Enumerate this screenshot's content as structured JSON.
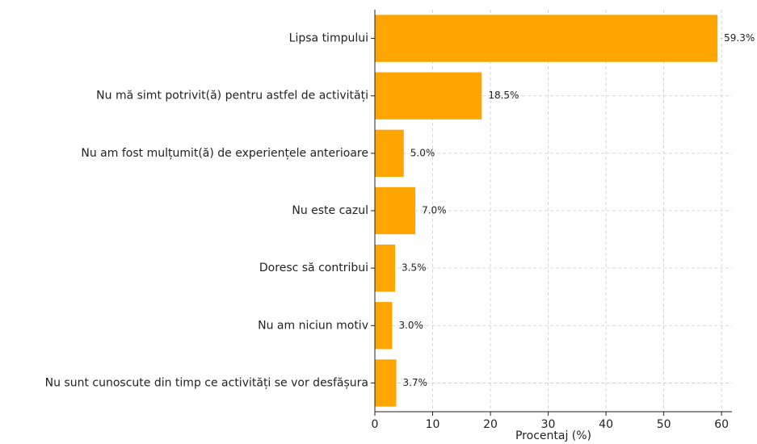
{
  "chart_data": {
    "type": "barh",
    "categories": [
      "Lipsa timpului",
      "Nu mă simt potrivit(ă) pentru astfel de activități",
      "Nu am fost mulțumit(ă) de experiențele anterioare",
      "Nu este cazul",
      "Doresc să contribui",
      "Nu am niciun motiv",
      "Nu sunt cunoscute din timp ce activități se vor desfășura"
    ],
    "values": [
      59.3,
      18.5,
      5.0,
      7.0,
      3.5,
      3.0,
      3.7
    ],
    "value_labels": [
      "59.3%",
      "18.5%",
      "5.0%",
      "7.0%",
      "3.5%",
      "3.0%",
      "3.7%"
    ],
    "color": "#ffa500",
    "xlabel": "Procentaj (%)",
    "xlim": [
      0,
      61.8
    ],
    "xticks": [
      0,
      10,
      20,
      30,
      40,
      50,
      60
    ],
    "grid": true
  }
}
